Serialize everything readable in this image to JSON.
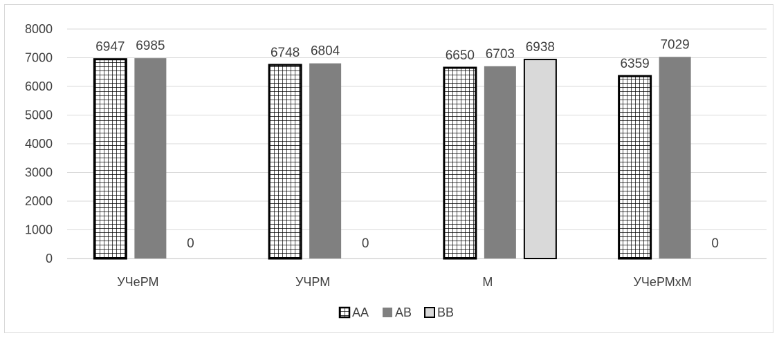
{
  "chart_data": {
    "type": "bar",
    "categories": [
      "УЧеРМ",
      "УЧРМ",
      "М",
      "УЧеРМхМ"
    ],
    "series": [
      {
        "name": "AA",
        "values": [
          6947,
          6748,
          6650,
          6359
        ],
        "labels": [
          "6947",
          "6748",
          "6650",
          "6359"
        ],
        "color": "#000000",
        "pattern": "grid"
      },
      {
        "name": "AB",
        "values": [
          6985,
          6804,
          6703,
          7029
        ],
        "labels": [
          "6985",
          "6804",
          "6703",
          "7029"
        ],
        "color": "#808080",
        "pattern": "solid"
      },
      {
        "name": "BB",
        "values": [
          0,
          0,
          6938,
          0
        ],
        "labels": [
          "0",
          "0",
          "6938",
          "0"
        ],
        "color": "#d9d9d9",
        "pattern": "outline"
      }
    ],
    "yticks": [
      "0",
      "1000",
      "2000",
      "3000",
      "4000",
      "5000",
      "6000",
      "7000",
      "8000"
    ],
    "ylim": [
      0,
      8000
    ],
    "grid": true,
    "legend_position": "bottom",
    "title": "",
    "xlabel": "",
    "ylabel": ""
  }
}
